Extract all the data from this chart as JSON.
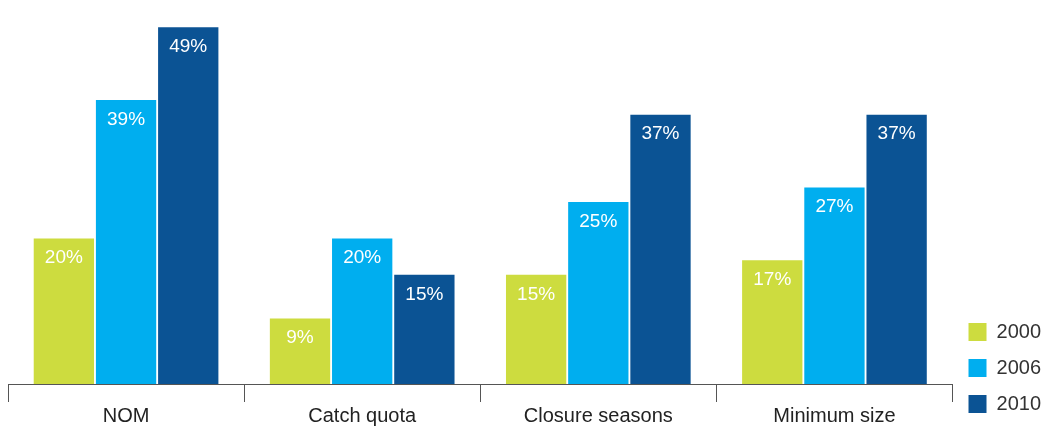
{
  "chart_data": {
    "type": "bar",
    "categories": [
      "NOM",
      "Catch quota",
      "Closure seasons",
      "Minimum size"
    ],
    "series": [
      {
        "name": "2000",
        "color": "#cddc3f",
        "values": [
          20,
          9,
          15,
          17
        ],
        "value_labels": [
          "20%",
          "9%",
          "15%",
          "17%"
        ]
      },
      {
        "name": "2006",
        "color": "#00aeef",
        "values": [
          39,
          20,
          25,
          27
        ],
        "value_labels": [
          "39%",
          "20%",
          "25%",
          "27%"
        ]
      },
      {
        "name": "2010",
        "color": "#0b5394",
        "values": [
          49,
          15,
          37,
          37
        ],
        "value_labels": [
          "49%",
          "15%",
          "37%",
          "37%"
        ]
      }
    ],
    "legend": "bottom right",
    "grid": false
  }
}
